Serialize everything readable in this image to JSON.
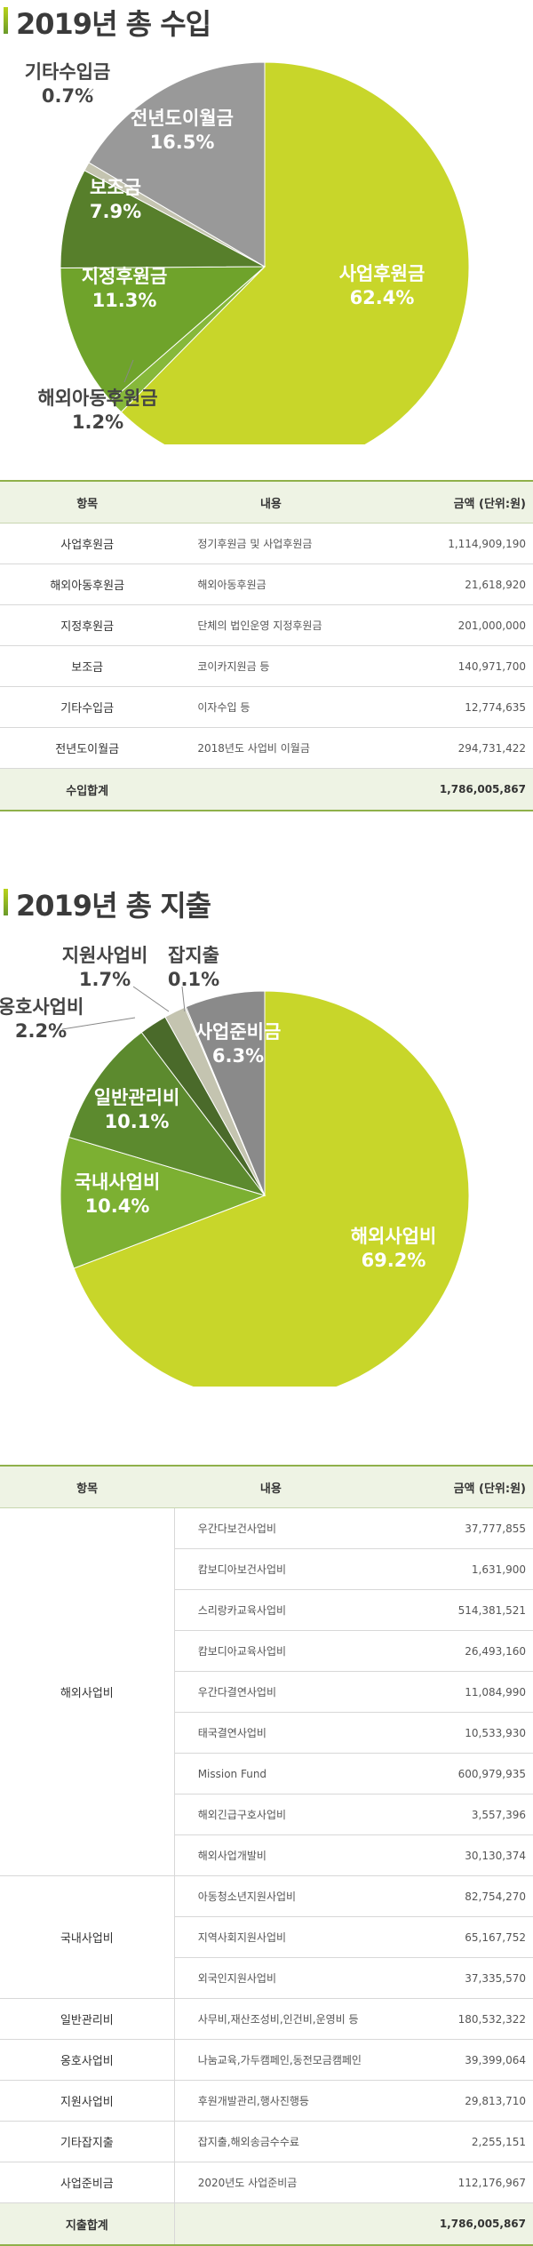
{
  "income": {
    "title": "2019년 총 수입",
    "chart_data": {
      "type": "pie",
      "title": "2019년 총 수입",
      "slices": [
        {
          "label": "사업후원금",
          "value": 62.4,
          "pct": "62.4%",
          "color": "#c8d62a"
        },
        {
          "label": "해외아동후원금",
          "value": 1.2,
          "pct": "1.2%",
          "color": "#86b83a"
        },
        {
          "label": "지정후원금",
          "value": 11.3,
          "pct": "11.3%",
          "color": "#6fa32b"
        },
        {
          "label": "보조금",
          "value": 7.9,
          "pct": "7.9%",
          "color": "#577f2b"
        },
        {
          "label": "기타수입금",
          "value": 0.7,
          "pct": "0.7%",
          "color": "#c4c4b0"
        },
        {
          "label": "전년도이월금",
          "value": 16.5,
          "pct": "16.5%",
          "color": "#999999"
        }
      ]
    },
    "table": {
      "headers": [
        "항목",
        "내용",
        "금액 (단위:원)"
      ],
      "rows": [
        [
          "사업후원금",
          "정기후원금 및 사업후원금",
          "1,114,909,190"
        ],
        [
          "해외아동후원금",
          "해외아동후원금",
          "21,618,920"
        ],
        [
          "지정후원금",
          "단체의 법인운영 지정후원금",
          "201,000,000"
        ],
        [
          "보조금",
          "코이카지원금 등",
          "140,971,700"
        ],
        [
          "기타수입금",
          "이자수입 등",
          "12,774,635"
        ],
        [
          "전년도이월금",
          "2018년도 사업비 이월금",
          "294,731,422"
        ]
      ],
      "total_label": "수입합계",
      "total_value": "1,786,005,867"
    }
  },
  "expense": {
    "title": "2019년 총 지출",
    "chart_data": {
      "type": "pie",
      "title": "2019년 총 지출",
      "slices": [
        {
          "label": "해외사업비",
          "value": 69.2,
          "pct": "69.2%",
          "color": "#c8d62a"
        },
        {
          "label": "국내사업비",
          "value": 10.4,
          "pct": "10.4%",
          "color": "#7cb032"
        },
        {
          "label": "일반관리비",
          "value": 10.1,
          "pct": "10.1%",
          "color": "#5c8a2e"
        },
        {
          "label": "옹호사업비",
          "value": 2.2,
          "pct": "2.2%",
          "color": "#4a6a2a"
        },
        {
          "label": "지원사업비",
          "value": 1.7,
          "pct": "1.7%",
          "color": "#c4c4b0"
        },
        {
          "label": "잡지출",
          "value": 0.1,
          "pct": "0.1%",
          "color": "#b0b0a0"
        },
        {
          "label": "사업준비금",
          "value": 6.3,
          "pct": "6.3%",
          "color": "#8a8a8a"
        }
      ]
    },
    "table": {
      "headers": [
        "항목",
        "내용",
        "금액 (단위:원)"
      ],
      "groups": [
        {
          "category": "해외사업비",
          "items": [
            [
              "우간다보건사업비",
              "37,777,855"
            ],
            [
              "캄보디아보건사업비",
              "1,631,900"
            ],
            [
              "스리랑카교육사업비",
              "514,381,521"
            ],
            [
              "캄보디아교육사업비",
              "26,493,160"
            ],
            [
              "우간다결연사업비",
              "11,084,990"
            ],
            [
              "태국결연사업비",
              "10,533,930"
            ],
            [
              "Mission Fund",
              "600,979,935"
            ],
            [
              "해외긴급구호사업비",
              "3,557,396"
            ],
            [
              "해외사업개발비",
              "30,130,374"
            ]
          ]
        },
        {
          "category": "국내사업비",
          "items": [
            [
              "아동청소년지원사업비",
              "82,754,270"
            ],
            [
              "지역사회지원사업비",
              "65,167,752"
            ],
            [
              "외국인지원사업비",
              "37,335,570"
            ]
          ]
        },
        {
          "category": "일반관리비",
          "items": [
            [
              "사무비,재산조성비,인건비,운영비 등",
              "180,532,322"
            ]
          ]
        },
        {
          "category": "옹호사업비",
          "items": [
            [
              "나눔교육,가두캠페인,동전모금캠페인",
              "39,399,064"
            ]
          ]
        },
        {
          "category": "지원사업비",
          "items": [
            [
              "후원개발관리,행사진행등",
              "29,813,710"
            ]
          ]
        },
        {
          "category": "기타잡지출",
          "items": [
            [
              "잡지출,해외송금수수료",
              "2,255,151"
            ]
          ]
        },
        {
          "category": "사업준비금",
          "items": [
            [
              "2020년도 사업준비금",
              "112,176,967"
            ]
          ]
        }
      ],
      "total_label": "지출합계",
      "total_value": "1,786,005,867"
    }
  }
}
